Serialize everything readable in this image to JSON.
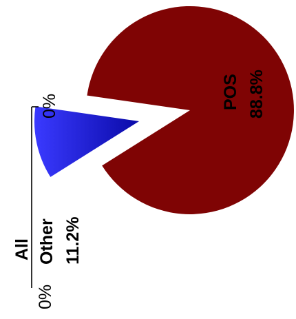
{
  "chart_data": {
    "type": "pie",
    "title": "All",
    "slices": [
      {
        "label": "POS",
        "value_label": "88.8%",
        "value": 88.8,
        "color": "#7f0404"
      },
      {
        "label": "Other",
        "value_label": "11.2%",
        "value": 11.2,
        "color": "#1a1ad8"
      }
    ],
    "scale_labels": {
      "start": "0%",
      "end": "0%"
    }
  }
}
